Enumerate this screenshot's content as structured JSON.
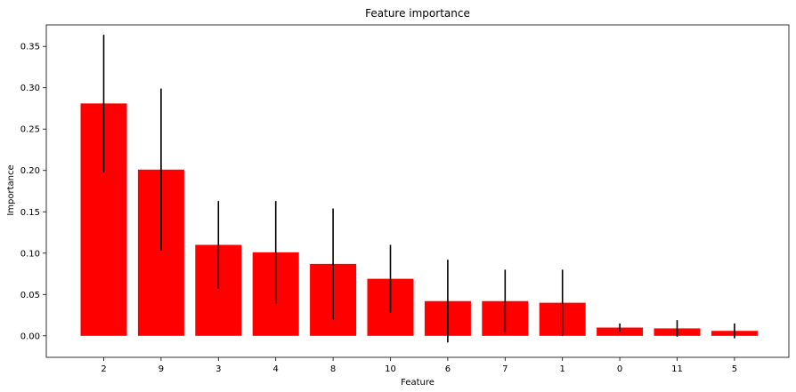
{
  "chart_data": {
    "type": "bar",
    "title": "Feature importance",
    "xlabel": "Feature",
    "ylabel": "Importance",
    "categories": [
      "2",
      "9",
      "3",
      "4",
      "8",
      "10",
      "6",
      "7",
      "1",
      "0",
      "11",
      "5"
    ],
    "values": [
      0.281,
      0.201,
      0.11,
      0.101,
      0.087,
      0.069,
      0.042,
      0.042,
      0.04,
      0.01,
      0.009,
      0.006
    ],
    "error": [
      0.083,
      0.098,
      0.053,
      0.062,
      0.067,
      0.041,
      0.05,
      0.038,
      0.04,
      0.005,
      0.01,
      0.009
    ],
    "ylim": [
      -0.026,
      0.376
    ],
    "yticks": [
      0.0,
      0.05,
      0.1,
      0.15,
      0.2,
      0.25,
      0.3,
      0.35
    ],
    "ytick_labels": [
      "0.00",
      "0.05",
      "0.10",
      "0.15",
      "0.20",
      "0.25",
      "0.30",
      "0.35"
    ],
    "bar_color": "#ff0000",
    "error_color": "#000000",
    "grid": false,
    "legend": "none"
  }
}
